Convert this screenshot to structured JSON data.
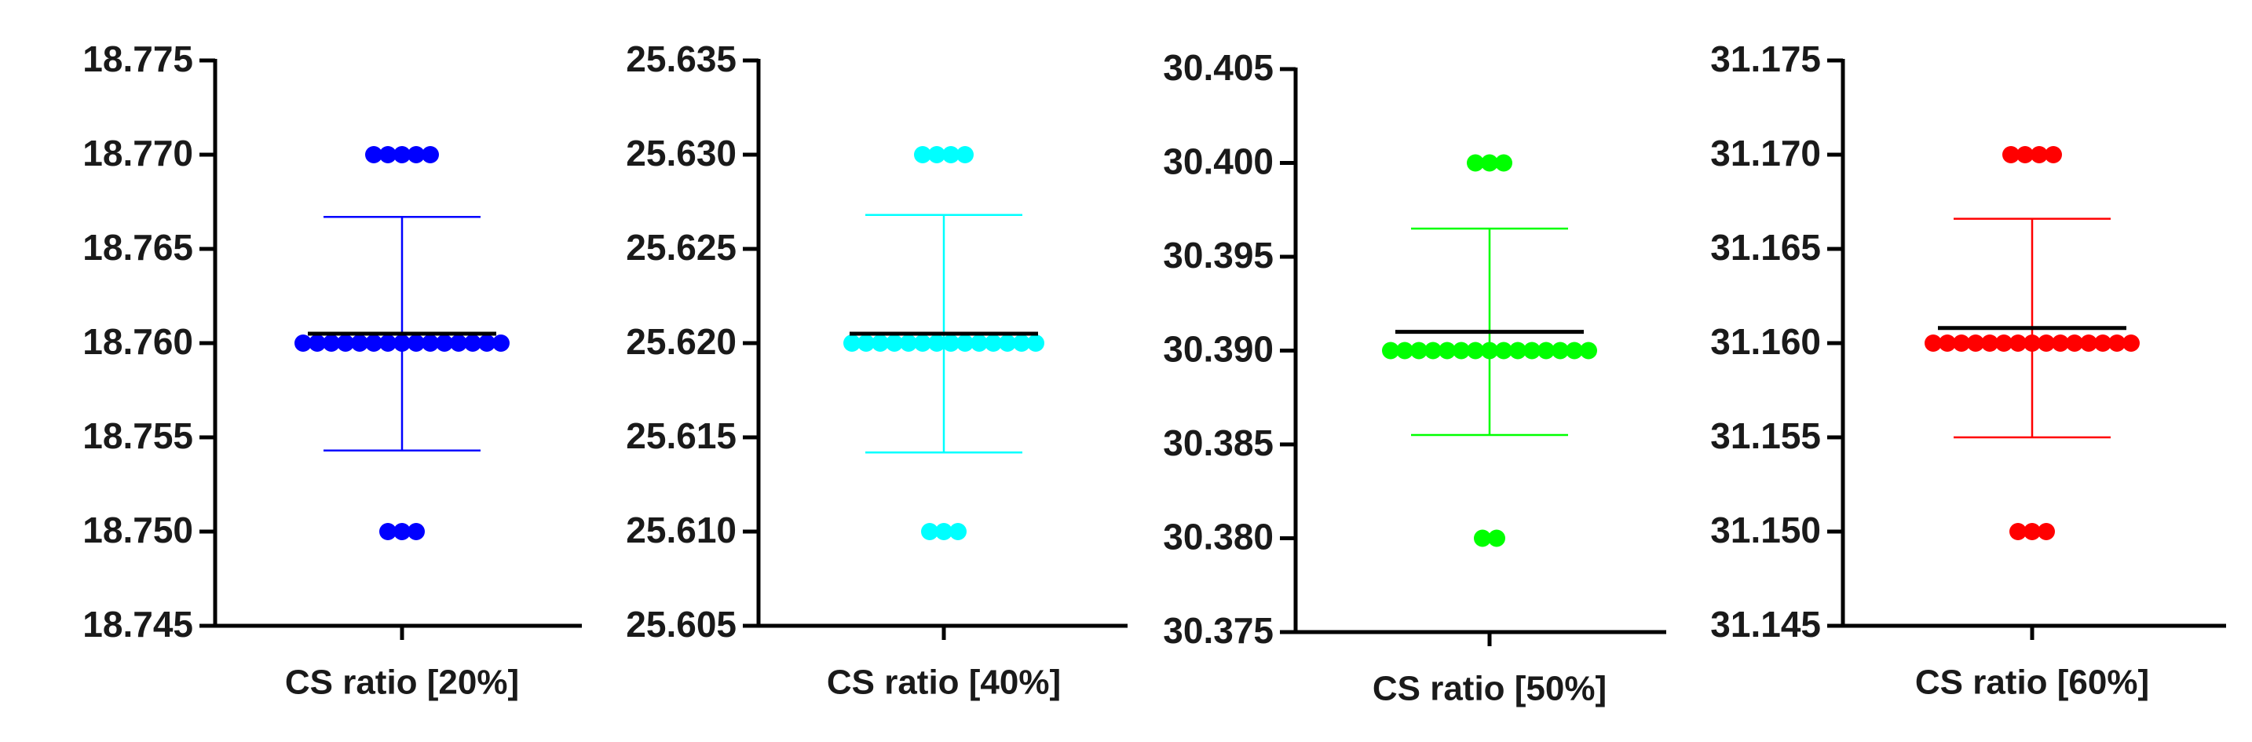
{
  "chart_data": [
    {
      "type": "scatter",
      "category": "CS ratio [20%]",
      "color": "#0000ff",
      "values": [
        18.77,
        18.77,
        18.77,
        18.77,
        18.77,
        18.76,
        18.76,
        18.76,
        18.76,
        18.76,
        18.76,
        18.76,
        18.76,
        18.76,
        18.76,
        18.76,
        18.76,
        18.76,
        18.76,
        18.76,
        18.75,
        18.75,
        18.75
      ],
      "mean": 18.7605,
      "sd": 0.0062,
      "ylim": [
        18.745,
        18.775
      ],
      "yticks": [
        18.745,
        {
          "value": 18.75,
          "label": "18.750"
        },
        18.755,
        {
          "value": 18.76,
          "label": "18.760"
        },
        18.765,
        {
          "value": 18.77,
          "label": "18.770"
        },
        18.775
      ]
    },
    {
      "type": "scatter",
      "category": "CS ratio [40%]",
      "color": "#00ffff",
      "values": [
        25.63,
        25.63,
        25.63,
        25.63,
        25.62,
        25.62,
        25.62,
        25.62,
        25.62,
        25.62,
        25.62,
        25.62,
        25.62,
        25.62,
        25.62,
        25.62,
        25.62,
        25.62,
        25.61,
        25.61,
        25.61
      ],
      "mean": 25.6205,
      "sd": 0.0063,
      "ylim": [
        25.605,
        25.635
      ],
      "yticks": [
        25.605,
        {
          "value": 25.61,
          "label": "25.610"
        },
        25.615,
        {
          "value": 25.62,
          "label": "25.620"
        },
        25.625,
        {
          "value": 25.63,
          "label": "25.630"
        },
        25.635
      ]
    },
    {
      "type": "scatter",
      "category": "CS ratio [50%]",
      "color": "#00ff00",
      "values": [
        30.4,
        30.4,
        30.4,
        30.39,
        30.39,
        30.39,
        30.39,
        30.39,
        30.39,
        30.39,
        30.39,
        30.39,
        30.39,
        30.39,
        30.39,
        30.39,
        30.39,
        30.39,
        30.38,
        30.38
      ],
      "mean": 30.391,
      "sd": 0.0055,
      "ylim": [
        30.375,
        30.405
      ],
      "yticks": [
        30.375,
        {
          "value": 30.38,
          "label": "30.380"
        },
        30.385,
        {
          "value": 30.39,
          "label": "30.390"
        },
        30.395,
        {
          "value": 30.4,
          "label": "30.400"
        },
        30.405
      ]
    },
    {
      "type": "scatter",
      "category": "CS ratio [60%]",
      "color": "#ff0000",
      "values": [
        31.17,
        31.17,
        31.17,
        31.17,
        31.16,
        31.16,
        31.16,
        31.16,
        31.16,
        31.16,
        31.16,
        31.16,
        31.16,
        31.16,
        31.16,
        31.16,
        31.16,
        31.16,
        31.16,
        31.15,
        31.15,
        31.15
      ],
      "mean": 31.1608,
      "sd": 0.0058,
      "ylim": [
        31.145,
        31.175
      ],
      "yticks": [
        31.145,
        {
          "value": 31.15,
          "label": "31.150"
        },
        31.155,
        {
          "value": 31.16,
          "label": "31.160"
        },
        31.165,
        {
          "value": 31.17,
          "label": "31.170"
        },
        31.175
      ]
    }
  ]
}
